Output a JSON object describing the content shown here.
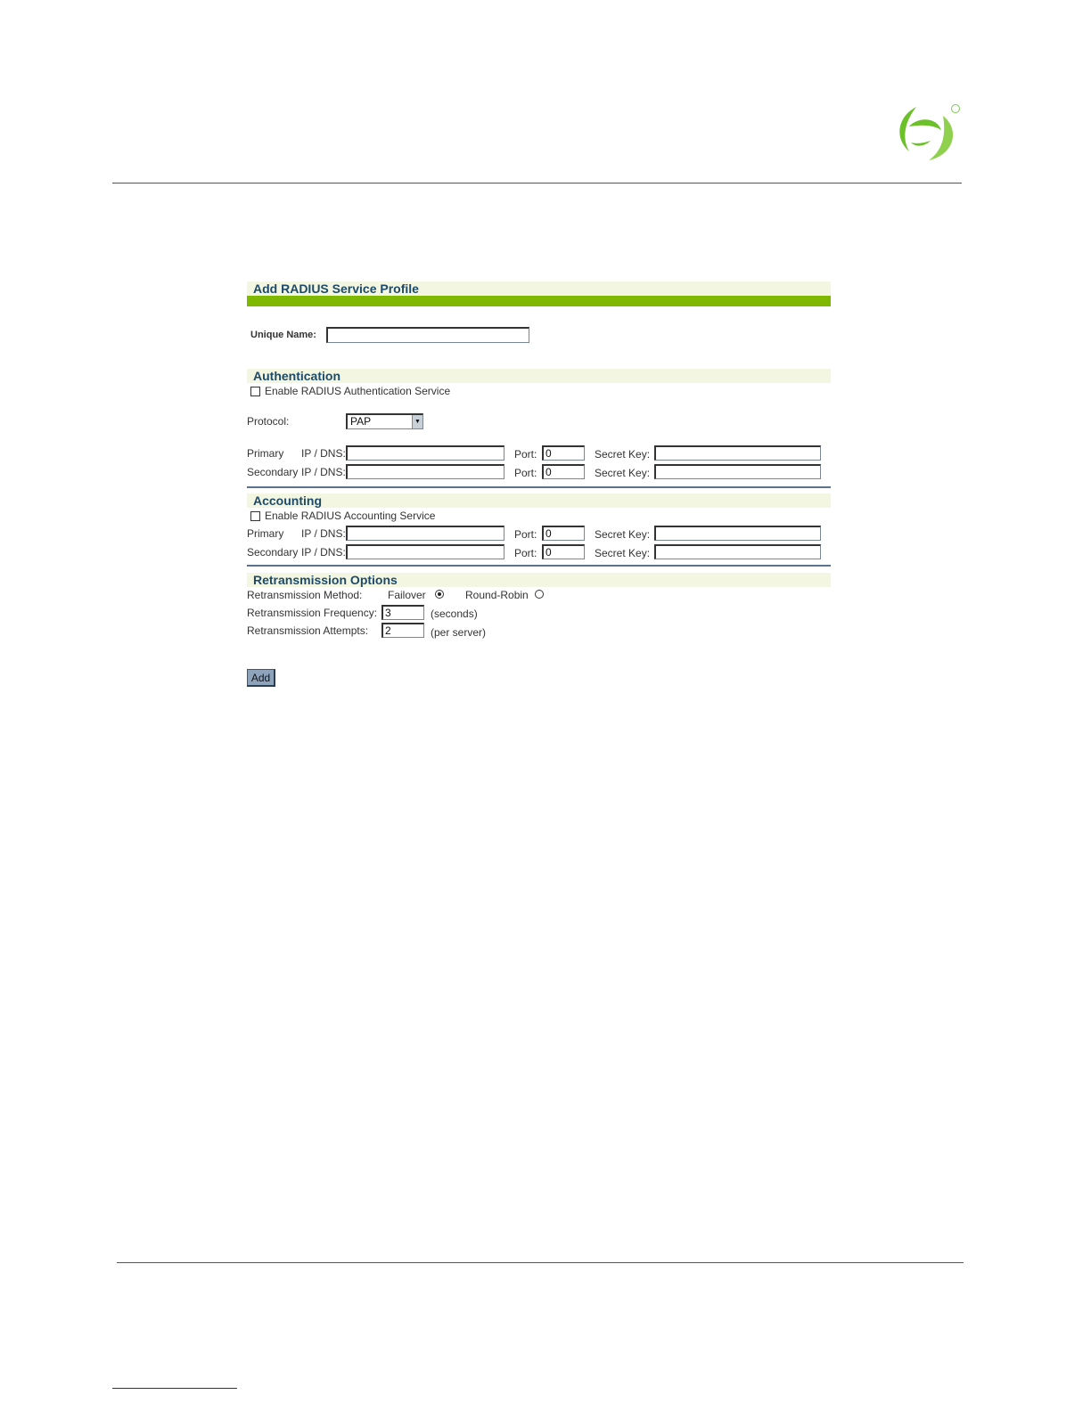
{
  "logo": {
    "icon": "swirl-logo-icon",
    "registered_mark": "®",
    "color": "#6cc02a"
  },
  "form": {
    "title": "Add RADIUS Service Profile",
    "accent_color": "#80b800",
    "unique_name": {
      "label": "Unique Name:",
      "value": ""
    },
    "authentication": {
      "heading": "Authentication",
      "enable_label": "Enable RADIUS Authentication Service",
      "enabled": false,
      "protocol_label": "Protocol:",
      "protocol_value": "PAP",
      "rows": [
        {
          "role": "Primary",
          "ip_label": "IP / DNS:",
          "ip": "",
          "port_label": "Port:",
          "port": "0",
          "key_label": "Secret Key:",
          "key": ""
        },
        {
          "role": "Secondary",
          "ip_label": "IP / DNS:",
          "ip": "",
          "port_label": "Port:",
          "port": "0",
          "key_label": "Secret Key:",
          "key": ""
        }
      ]
    },
    "accounting": {
      "heading": "Accounting",
      "enable_label": "Enable RADIUS Accounting Service",
      "enabled": false,
      "rows": [
        {
          "role": "Primary",
          "ip_label": "IP / DNS:",
          "ip": "",
          "port_label": "Port:",
          "port": "0",
          "key_label": "Secret Key:",
          "key": ""
        },
        {
          "role": "Secondary",
          "ip_label": "IP / DNS:",
          "ip": "",
          "port_label": "Port:",
          "port": "0",
          "key_label": "Secret Key:",
          "key": ""
        }
      ]
    },
    "retransmission": {
      "heading": "Retransmission Options",
      "method_label": "Retransmission Method:",
      "failover_label": "Failover",
      "round_robin_label": "Round-Robin",
      "selected_method": "Failover",
      "frequency_label": "Retransmission Frequency:",
      "frequency": "3",
      "frequency_unit": "(seconds)",
      "attempts_label": "Retransmission Attempts:",
      "attempts": "2",
      "attempts_unit": "(per server)"
    },
    "add_button": "Add"
  }
}
